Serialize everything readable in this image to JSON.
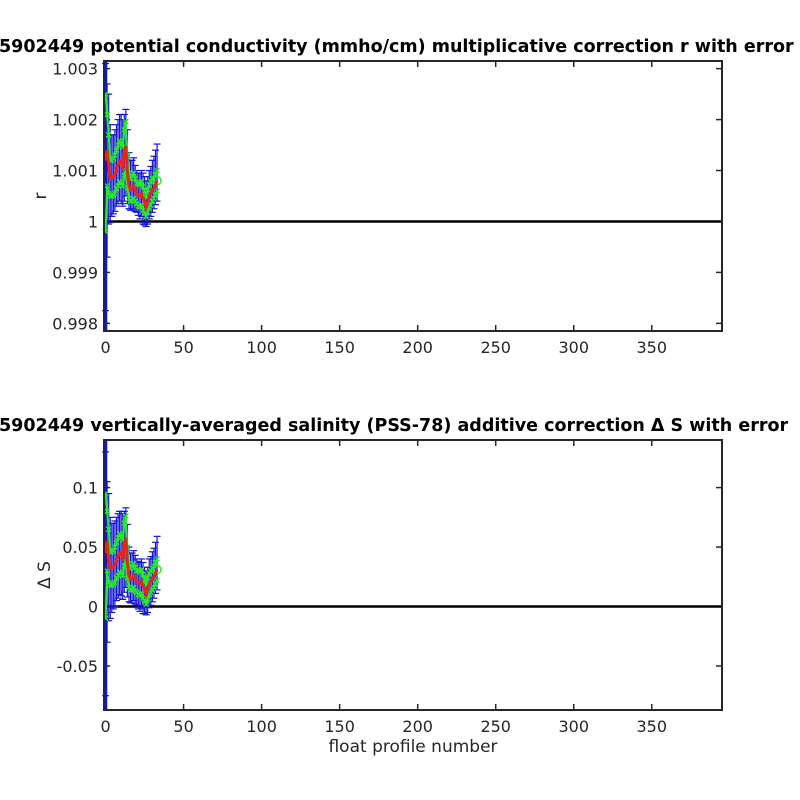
{
  "chart_data": [
    {
      "type": "line",
      "title": "5902449 potential conductivity (mmho/cm) multiplicative correction r with error",
      "xlabel": "",
      "ylabel": "r",
      "xlim": [
        -1,
        395
      ],
      "ylim": [
        0.99785,
        1.00315
      ],
      "xticks": [
        0,
        50,
        100,
        150,
        200,
        250,
        300,
        350
      ],
      "xtick_labels": [
        "0",
        "50",
        "100",
        "150",
        "200",
        "250",
        "300",
        "350"
      ],
      "yticks": [
        0.998,
        0.999,
        1.0,
        1.001,
        1.002,
        1.003
      ],
      "ytick_labels": [
        "0.998",
        "0.999",
        "1",
        "1.001",
        "1.002",
        "1.003"
      ],
      "grid": false,
      "reference_line": 1.0,
      "colors": {
        "fit": "#e8241a",
        "band": "#22ee22",
        "errorbar": "#1515d6",
        "reference": "#000000"
      },
      "series": [
        {
          "role": "fitted correction with error bars",
          "x": [
            0,
            1,
            2,
            3,
            4,
            5,
            6,
            7,
            8,
            9,
            10,
            11,
            12,
            13,
            14,
            15,
            16,
            17,
            18,
            19,
            20,
            21,
            22,
            23,
            24,
            25,
            26,
            27,
            28,
            29,
            30,
            31,
            32,
            33
          ],
          "y": [
            1.0012,
            1.0014,
            1.0011,
            1.00085,
            1.00085,
            1.00088,
            1.00092,
            1.00102,
            1.0011,
            1.00118,
            1.00115,
            1.00108,
            1.00135,
            1.00148,
            1.00098,
            1.0007,
            1.00062,
            1.00065,
            1.0007,
            1.00062,
            1.00055,
            1.00052,
            1.0005,
            1.00055,
            1.00045,
            1.00038,
            1.00028,
            1.0004,
            1.0005,
            1.00055,
            1.00062,
            1.00065,
            1.00072,
            1.0008
          ],
          "err_low": [
            0.99825,
            0.9993,
            0.99995,
            0.99998,
            1.0001,
            1.00015,
            1.0002,
            1.0003,
            1.00035,
            1.0004,
            1.00035,
            1.0003,
            1.0004,
            1.0005,
            1.00035,
            1.00025,
            1.00022,
            1.00022,
            1.00025,
            1.0002,
            1.00018,
            1.00012,
            1.00005,
            1.0001,
            0.99995,
            0.99993,
            0.9999,
            0.99995,
            1.00005,
            1.0001,
            1.00018,
            1.00025,
            1.00033,
            1.0004
          ],
          "err_high": [
            1.0031,
            1.0027,
            1.0025,
            1.0019,
            1.0017,
            1.0017,
            1.0018,
            1.0019,
            1.002,
            1.0021,
            1.0021,
            1.002,
            1.0021,
            1.0022,
            1.0018,
            1.00135,
            1.0012,
            1.0012,
            1.00125,
            1.0011,
            1.001,
            1.00095,
            1.00095,
            1.001,
            1.00095,
            1.00088,
            1.0008,
            1.00088,
            1.001,
            1.00108,
            1.0012,
            1.00128,
            1.0014,
            1.00152
          ],
          "band_low": [
            0.9998,
            1.0007,
            1.00055,
            1.0005,
            1.0005,
            1.00052,
            1.00055,
            1.00065,
            1.0007,
            1.00078,
            1.00075,
            1.0007,
            1.0009,
            1.001,
            1.00066,
            1.00045,
            1.0004,
            1.0004,
            1.00045,
            1.0004,
            1.00035,
            1.0003,
            1.00028,
            1.00032,
            1.00022,
            1.00016,
            1.0001,
            1.00018,
            1.00028,
            1.00032,
            1.0004,
            1.00045,
            1.00052,
            1.0006
          ],
          "band_high": [
            1.0025,
            1.0021,
            1.0017,
            1.0012,
            1.0012,
            1.00124,
            1.0013,
            1.0014,
            1.0015,
            1.00158,
            1.00155,
            1.00146,
            1.0018,
            1.00196,
            1.0013,
            1.00095,
            1.00084,
            1.0009,
            1.00095,
            1.00084,
            1.00075,
            1.00074,
            1.00072,
            1.00078,
            1.00068,
            1.0006,
            1.00046,
            1.00062,
            1.00072,
            1.00078,
            1.00084,
            1.00085,
            1.00092,
            1.001
          ]
        }
      ]
    },
    {
      "type": "line",
      "title": "5902449 vertically-averaged salinity (PSS-78) additive correction Δ S with error",
      "xlabel": "float profile number",
      "ylabel": "Δ S",
      "xlim": [
        -1,
        395
      ],
      "ylim": [
        -0.087,
        0.14
      ],
      "xticks": [
        0,
        50,
        100,
        150,
        200,
        250,
        300,
        350
      ],
      "xtick_labels": [
        "0",
        "50",
        "100",
        "150",
        "200",
        "250",
        "300",
        "350"
      ],
      "yticks": [
        -0.05,
        0,
        0.05,
        0.1
      ],
      "ytick_labels": [
        "-0.05",
        "0",
        "0.05",
        "0.1"
      ],
      "grid": false,
      "reference_line": 0,
      "colors": {
        "fit": "#e8241a",
        "band": "#22ee22",
        "errorbar": "#1515d6",
        "reference": "#000000"
      },
      "series": [
        {
          "role": "fitted correction with error bars",
          "x": [
            0,
            1,
            2,
            3,
            4,
            5,
            6,
            7,
            8,
            9,
            10,
            11,
            12,
            13,
            14,
            15,
            16,
            17,
            18,
            19,
            20,
            21,
            22,
            23,
            24,
            25,
            26,
            27,
            28,
            29,
            30,
            31,
            32,
            33
          ],
          "y": [
            0.045,
            0.055,
            0.04,
            0.032,
            0.032,
            0.033,
            0.035,
            0.039,
            0.042,
            0.045,
            0.044,
            0.041,
            0.052,
            0.058,
            0.037,
            0.026,
            0.023,
            0.024,
            0.026,
            0.023,
            0.021,
            0.02,
            0.019,
            0.021,
            0.017,
            0.014,
            0.01,
            0.015,
            0.019,
            0.021,
            0.023,
            0.025,
            0.028,
            0.031
          ],
          "err_low": [
            -0.075,
            -0.03,
            -0.012,
            -0.01,
            -0.005,
            -0.002,
            0.0,
            0.005,
            0.007,
            0.01,
            0.009,
            0.006,
            0.012,
            0.016,
            0.008,
            0.004,
            0.003,
            0.003,
            0.005,
            0.002,
            0.001,
            -0.002,
            -0.004,
            -0.002,
            -0.006,
            -0.006,
            -0.007,
            -0.005,
            -0.001,
            0.001,
            0.004,
            0.007,
            0.011,
            0.014
          ],
          "err_high": [
            0.13,
            0.105,
            0.095,
            0.075,
            0.07,
            0.07,
            0.072,
            0.075,
            0.078,
            0.08,
            0.08,
            0.078,
            0.08,
            0.083,
            0.069,
            0.05,
            0.045,
            0.045,
            0.047,
            0.043,
            0.04,
            0.038,
            0.037,
            0.04,
            0.037,
            0.033,
            0.03,
            0.033,
            0.04,
            0.042,
            0.046,
            0.049,
            0.054,
            0.059
          ],
          "band_low": [
            -0.01,
            0.03,
            0.02,
            0.018,
            0.018,
            0.019,
            0.02,
            0.024,
            0.026,
            0.029,
            0.028,
            0.026,
            0.034,
            0.038,
            0.024,
            0.016,
            0.014,
            0.014,
            0.016,
            0.013,
            0.012,
            0.01,
            0.009,
            0.011,
            0.007,
            0.005,
            0.002,
            0.006,
            0.01,
            0.012,
            0.014,
            0.016,
            0.019,
            0.022
          ],
          "band_high": [
            0.095,
            0.08,
            0.065,
            0.046,
            0.046,
            0.047,
            0.05,
            0.054,
            0.058,
            0.061,
            0.06,
            0.056,
            0.07,
            0.076,
            0.05,
            0.036,
            0.032,
            0.034,
            0.036,
            0.033,
            0.03,
            0.03,
            0.029,
            0.031,
            0.027,
            0.023,
            0.018,
            0.024,
            0.028,
            0.03,
            0.032,
            0.034,
            0.037,
            0.04
          ]
        }
      ]
    }
  ]
}
